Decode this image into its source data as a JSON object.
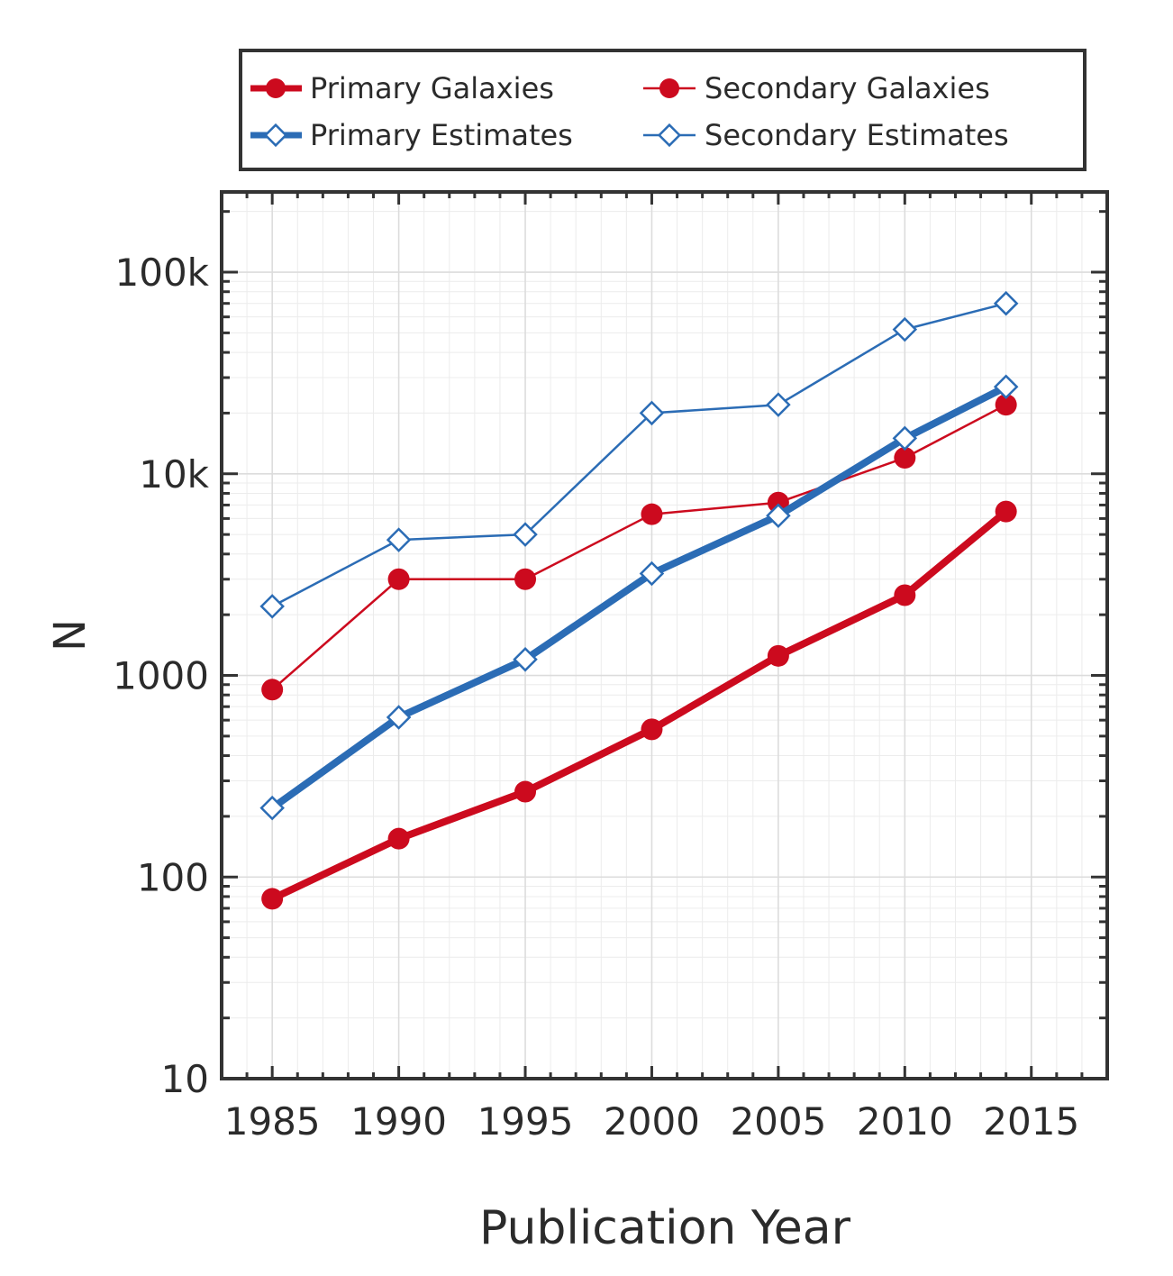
{
  "chart_data": {
    "type": "line",
    "title": "",
    "xlabel": "Publication Year",
    "ylabel": "N",
    "yscale": "log",
    "xlim": [
      1983,
      2018
    ],
    "ylim": [
      10,
      250000
    ],
    "x_ticks": [
      1985,
      1990,
      1995,
      2000,
      2005,
      2010,
      2015
    ],
    "x_tick_labels": [
      "1985",
      "1990",
      "1995",
      "2000",
      "2005",
      "2010",
      "2015"
    ],
    "y_ticks": [
      10,
      100,
      1000,
      10000,
      100000
    ],
    "y_tick_labels": [
      "10",
      "100",
      "1000",
      "10k",
      "100k"
    ],
    "grid": true,
    "legend_position": "top",
    "x": [
      1985,
      1990,
      1995,
      2000,
      2005,
      2010,
      2014
    ],
    "series": [
      {
        "name": "Primary Galaxies",
        "values": [
          78,
          155,
          265,
          540,
          1250,
          2500,
          6500
        ],
        "color": "#cc0a1e",
        "marker": "circle",
        "weight": "thick"
      },
      {
        "name": "Secondary Galaxies",
        "values": [
          850,
          3000,
          3000,
          6300,
          7200,
          12000,
          22000
        ],
        "color": "#cc0a1e",
        "marker": "circle",
        "weight": "thin"
      },
      {
        "name": "Primary Estimates",
        "values": [
          220,
          620,
          1200,
          3200,
          6200,
          15000,
          27000
        ],
        "color": "#2b6cb5",
        "marker": "diamond-open",
        "weight": "thick"
      },
      {
        "name": "Secondary Estimates",
        "values": [
          2200,
          4700,
          5000,
          20000,
          22000,
          52000,
          70000
        ],
        "color": "#2b6cb5",
        "marker": "diamond-open",
        "weight": "thin"
      }
    ]
  }
}
